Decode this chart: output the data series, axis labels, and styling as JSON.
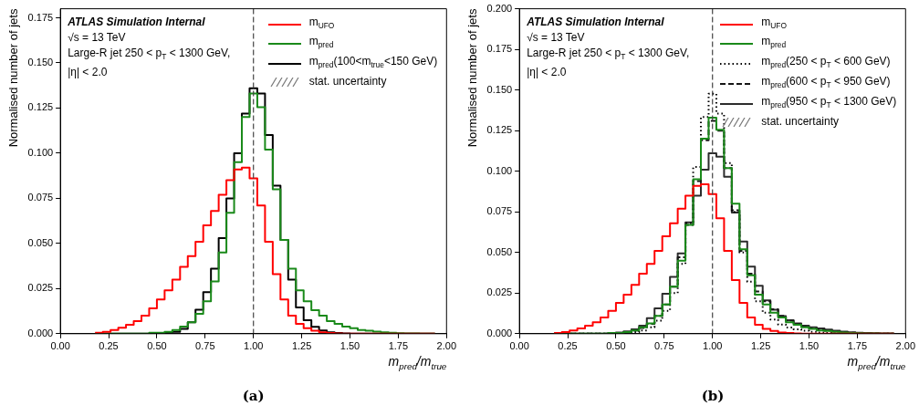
{
  "chart_data": [
    {
      "type": "histogram",
      "title": "(a)",
      "xlabel": "m$_{pred}$/m$_{true}$",
      "ylabel": "Normalised number of jets",
      "bins": [
        0.18,
        0.22,
        0.26,
        0.3,
        0.34,
        0.38,
        0.42,
        0.46,
        0.5,
        0.54,
        0.58,
        0.62,
        0.66,
        0.7,
        0.74,
        0.78,
        0.82,
        0.86,
        0.9,
        0.94,
        0.98,
        1.02,
        1.06,
        1.1,
        1.14,
        1.18,
        1.22,
        1.26,
        1.3,
        1.34,
        1.38,
        1.42,
        1.46,
        1.5,
        1.54,
        1.58,
        1.62,
        1.66,
        1.7,
        1.74,
        1.78,
        1.82,
        1.86,
        1.9,
        1.94
      ],
      "series": [
        {
          "name": "m$_{UFO}$",
          "color": "#ff0000",
          "line_style": "solid",
          "values": [
            0.0005,
            0.001,
            0.002,
            0.0033,
            0.005,
            0.007,
            0.01,
            0.014,
            0.019,
            0.024,
            0.03,
            0.037,
            0.043,
            0.051,
            0.06,
            0.068,
            0.077,
            0.085,
            0.091,
            0.092,
            0.086,
            0.071,
            0.051,
            0.033,
            0.019,
            0.01,
            0.0055,
            0.003,
            0.0017,
            0.0008,
            0.0004,
            0.0002,
            0,
            0,
            0,
            0,
            0,
            0,
            0,
            0,
            0,
            0,
            0,
            0
          ]
        },
        {
          "name": "m$_{pred}$",
          "color": "#1a8a1a",
          "line_style": "solid",
          "values": [
            0,
            0,
            0,
            0,
            0,
            0,
            0,
            0.0005,
            0.0005,
            0.001,
            0.002,
            0.004,
            0.0063,
            0.011,
            0.018,
            0.029,
            0.045,
            0.067,
            0.095,
            0.12,
            0.133,
            0.1255,
            0.102,
            0.08,
            0.052,
            0.036,
            0.024,
            0.018,
            0.013,
            0.01,
            0.007,
            0.0055,
            0.004,
            0.003,
            0.002,
            0.0017,
            0.0012,
            0.0008,
            0.0005,
            0.0003,
            0.0002,
            0.0001,
            0,
            0
          ]
        },
        {
          "name": "m$_{pred}$(100<m$_{true}$<150 GeV)",
          "color": "#000000",
          "line_style": "solid",
          "values": [
            0,
            0,
            0,
            0,
            0,
            0,
            0,
            0,
            0.0003,
            0.0005,
            0.001,
            0.0027,
            0.0063,
            0.0133,
            0.023,
            0.036,
            0.053,
            0.075,
            0.1,
            0.122,
            0.136,
            0.133,
            0.11,
            0.082,
            0.052,
            0.03,
            0.0146,
            0.0075,
            0.0038,
            0.0018,
            0.0008,
            0.0004,
            0.0002,
            0,
            0,
            0,
            0,
            0,
            0,
            0,
            0,
            0,
            0,
            0
          ]
        }
      ],
      "xlim": [
        0,
        2
      ],
      "xticks": [
        {
          "value": 0,
          "label": "0.00"
        },
        {
          "value": 0.25,
          "label": "0.25"
        },
        {
          "value": 0.5,
          "label": "0.50"
        },
        {
          "value": 0.75,
          "label": "0.75"
        },
        {
          "value": 1,
          "label": "1.00"
        },
        {
          "value": 1.25,
          "label": "1.25"
        },
        {
          "value": 1.5,
          "label": "1.50"
        },
        {
          "value": 1.75,
          "label": "1.75"
        },
        {
          "value": 2,
          "label": "2.00"
        }
      ],
      "ylim": [
        0,
        0.18
      ],
      "yticks": [
        {
          "value": 0,
          "label": "0.000"
        },
        {
          "value": 0.025,
          "label": "0.025"
        },
        {
          "value": 0.05,
          "label": "0.050"
        },
        {
          "value": 0.075,
          "label": "0.075"
        },
        {
          "value": 0.1,
          "label": "0.100"
        },
        {
          "value": 0.125,
          "label": "0.125"
        },
        {
          "value": 0.15,
          "label": "0.150"
        },
        {
          "value": 0.175,
          "label": "0.175"
        }
      ],
      "ref_lines": [
        {
          "axis": "x",
          "value": 1.0,
          "color": "#444444",
          "line_style": "dashed"
        }
      ],
      "legend": "top right",
      "annotations": [
        "ATLAS Simulation Internal",
        "√s = 13 TeV",
        "Large-R jet 250 < p$_{T}$ < 1300 GeV,",
        "|η| < 2.0",
        "stat. uncertainty"
      ]
    },
    {
      "type": "histogram",
      "title": "(b)",
      "xlabel": "m$_{pred}$/m$_{true}$",
      "ylabel": "Normalised number of jets",
      "bins": [
        0.18,
        0.22,
        0.26,
        0.3,
        0.34,
        0.38,
        0.42,
        0.46,
        0.5,
        0.54,
        0.58,
        0.62,
        0.66,
        0.7,
        0.74,
        0.78,
        0.82,
        0.86,
        0.9,
        0.94,
        0.98,
        1.02,
        1.06,
        1.1,
        1.14,
        1.18,
        1.22,
        1.26,
        1.3,
        1.34,
        1.38,
        1.42,
        1.46,
        1.5,
        1.54,
        1.58,
        1.62,
        1.66,
        1.7,
        1.74,
        1.78,
        1.82,
        1.86,
        1.9,
        1.94
      ],
      "series": [
        {
          "name": "m$_{UFO}$",
          "color": "#ff0000",
          "line_style": "solid",
          "values": [
            0.0005,
            0.001,
            0.002,
            0.0033,
            0.005,
            0.007,
            0.01,
            0.014,
            0.019,
            0.024,
            0.03,
            0.037,
            0.043,
            0.051,
            0.06,
            0.068,
            0.077,
            0.085,
            0.091,
            0.092,
            0.086,
            0.071,
            0.051,
            0.033,
            0.019,
            0.01,
            0.0055,
            0.003,
            0.0017,
            0.0008,
            0.0004,
            0.0002,
            0,
            0,
            0,
            0,
            0,
            0,
            0,
            0,
            0,
            0,
            0,
            0
          ]
        },
        {
          "name": "m$_{pred}$",
          "color": "#1a8a1a",
          "line_style": "solid",
          "values": [
            0,
            0,
            0,
            0,
            0,
            0,
            0,
            0.0005,
            0.0005,
            0.001,
            0.002,
            0.004,
            0.0063,
            0.011,
            0.018,
            0.029,
            0.045,
            0.067,
            0.095,
            0.12,
            0.133,
            0.1255,
            0.102,
            0.08,
            0.052,
            0.036,
            0.024,
            0.018,
            0.013,
            0.01,
            0.007,
            0.0055,
            0.004,
            0.003,
            0.002,
            0.0017,
            0.0012,
            0.0008,
            0.0005,
            0.0003,
            0.0002,
            0.0001,
            0,
            0
          ]
        },
        {
          "name": "m$_{pred}$(250 < p$_{T}$ < 600 GeV)",
          "color": "#000000",
          "line_style": "dotted",
          "values": [
            0,
            0,
            0,
            0,
            0,
            0,
            0,
            0,
            0,
            0.0005,
            0.001,
            0.002,
            0.004,
            0.008,
            0.014,
            0.025,
            0.043,
            0.068,
            0.1026,
            0.1334,
            0.1477,
            0.1355,
            0.105,
            0.075,
            0.05,
            0.032,
            0.02,
            0.013,
            0.0087,
            0.0056,
            0.0038,
            0.0027,
            0.0018,
            0.0012,
            0.0008,
            0.0005,
            0.0003,
            0.0002,
            0.0001,
            0,
            0,
            0,
            0,
            0
          ]
        },
        {
          "name": "m$_{pred}$(600 < p$_{T}$ < 950 GeV)",
          "color": "#161616",
          "line_style": "dashed",
          "values": [
            0,
            0,
            0,
            0,
            0,
            0,
            0,
            0,
            0.0005,
            0.001,
            0.002,
            0.0035,
            0.006,
            0.011,
            0.018,
            0.029,
            0.047,
            0.067,
            0.094,
            0.119,
            0.131,
            0.125,
            0.102,
            0.076,
            0.051,
            0.037,
            0.026,
            0.02,
            0.015,
            0.011,
            0.008,
            0.006,
            0.0045,
            0.0033,
            0.0025,
            0.0018,
            0.0013,
            0.0009,
            0.0006,
            0.0004,
            0.0002,
            0.0001,
            0,
            0
          ]
        },
        {
          "name": "m$_{pred}$(950 < p$_{T}$ < 1300 GeV)",
          "color": "#2c2c2c",
          "line_style": "solid",
          "values": [
            0,
            0,
            0,
            0,
            0,
            0,
            0,
            0.0004,
            0.0008,
            0.0015,
            0.0027,
            0.005,
            0.0096,
            0.0156,
            0.0246,
            0.035,
            0.0495,
            0.0685,
            0.085,
            0.101,
            0.111,
            0.109,
            0.0966,
            0.0745,
            0.0567,
            0.0413,
            0.0295,
            0.0205,
            0.0147,
            0.0109,
            0.0083,
            0.0063,
            0.005,
            0.004,
            0.0033,
            0.0025,
            0.0018,
            0.0013,
            0.0009,
            0.0006,
            0.0004,
            0.0003,
            0.0002,
            0.0001
          ]
        }
      ],
      "xlim": [
        0,
        2
      ],
      "xticks": [
        {
          "value": 0,
          "label": "0.00"
        },
        {
          "value": 0.25,
          "label": "0.25"
        },
        {
          "value": 0.5,
          "label": "0.50"
        },
        {
          "value": 0.75,
          "label": "0.75"
        },
        {
          "value": 1,
          "label": "1.00"
        },
        {
          "value": 1.25,
          "label": "1.25"
        },
        {
          "value": 1.5,
          "label": "1.50"
        },
        {
          "value": 1.75,
          "label": "1.75"
        },
        {
          "value": 2,
          "label": "2.00"
        }
      ],
      "ylim": [
        0,
        0.2
      ],
      "yticks": [
        {
          "value": 0,
          "label": "0.000"
        },
        {
          "value": 0.025,
          "label": "0.025"
        },
        {
          "value": 0.05,
          "label": "0.050"
        },
        {
          "value": 0.075,
          "label": "0.075"
        },
        {
          "value": 0.1,
          "label": "0.100"
        },
        {
          "value": 0.125,
          "label": "0.125"
        },
        {
          "value": 0.15,
          "label": "0.150"
        },
        {
          "value": 0.175,
          "label": "0.175"
        },
        {
          "value": 0.2,
          "label": "0.200"
        }
      ],
      "ref_lines": [
        {
          "axis": "x",
          "value": 1.0,
          "color": "#444444",
          "line_style": "dashed"
        }
      ],
      "legend": "top right",
      "annotations": [
        "ATLAS Simulation Internal",
        "√s = 13 TeV",
        "Large-R jet 250 < p$_{T}$ < 1300 GeV,",
        "|η| < 2.0",
        "stat. uncertainty"
      ]
    }
  ]
}
